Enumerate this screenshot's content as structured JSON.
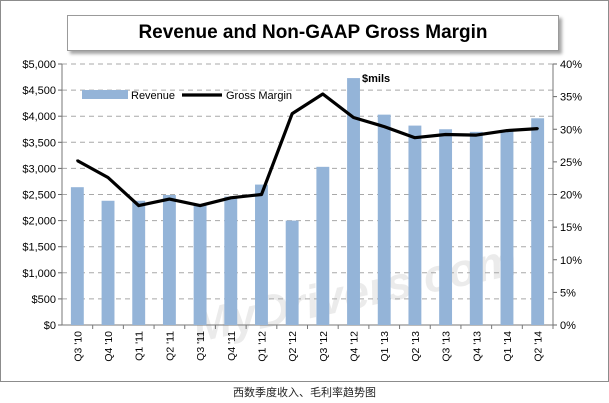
{
  "chart_data": {
    "type": "bar",
    "title": "Revenue and Non-GAAP Gross Margin",
    "annotation": "$mils",
    "watermark": "MyDrivers.com",
    "categories": [
      "Q3 '10",
      "Q4 '10",
      "Q1 '11",
      "Q2 '11",
      "Q3 '11",
      "Q4 '11",
      "Q1 '12",
      "Q2 '12",
      "Q3 '12",
      "Q4 '12",
      "Q1 '13",
      "Q2 '13",
      "Q3 '13",
      "Q4 '13",
      "Q1 '14",
      "Q2 '14"
    ],
    "series": [
      {
        "name": "Revenue",
        "type": "bar",
        "axis": "left",
        "color": "#94b4d8",
        "values": [
          2640,
          2380,
          2380,
          2490,
          2300,
          2460,
          2690,
          2000,
          3030,
          4730,
          4030,
          3820,
          3750,
          3700,
          3720,
          3960
        ]
      },
      {
        "name": "Gross Margin",
        "type": "line",
        "axis": "right",
        "color": "#000000",
        "values": [
          25.2,
          22.6,
          18.3,
          19.3,
          18.3,
          19.5,
          20.0,
          32.4,
          35.4,
          31.8,
          30.4,
          28.7,
          29.2,
          29.1,
          29.8,
          30.1
        ]
      }
    ],
    "y_left": {
      "min": 0,
      "max": 5000,
      "step": 500,
      "ticks": [
        "$0",
        "$500",
        "$1,000",
        "$1,500",
        "$2,000",
        "$2,500",
        "$3,000",
        "$3,500",
        "$4,000",
        "$4,500",
        "$5,000"
      ]
    },
    "y_right": {
      "min": 0,
      "max": 40,
      "step": 5,
      "ticks": [
        "0%",
        "5%",
        "10%",
        "15%",
        "20%",
        "25%",
        "30%",
        "35%",
        "40%"
      ]
    },
    "legend": [
      {
        "name": "Revenue",
        "kind": "bar"
      },
      {
        "name": "Gross Margin",
        "kind": "line"
      }
    ],
    "grid": "horizontal-dashed",
    "legend_position": "top-left"
  },
  "caption": "西数季度收入、毛利率趋势图"
}
